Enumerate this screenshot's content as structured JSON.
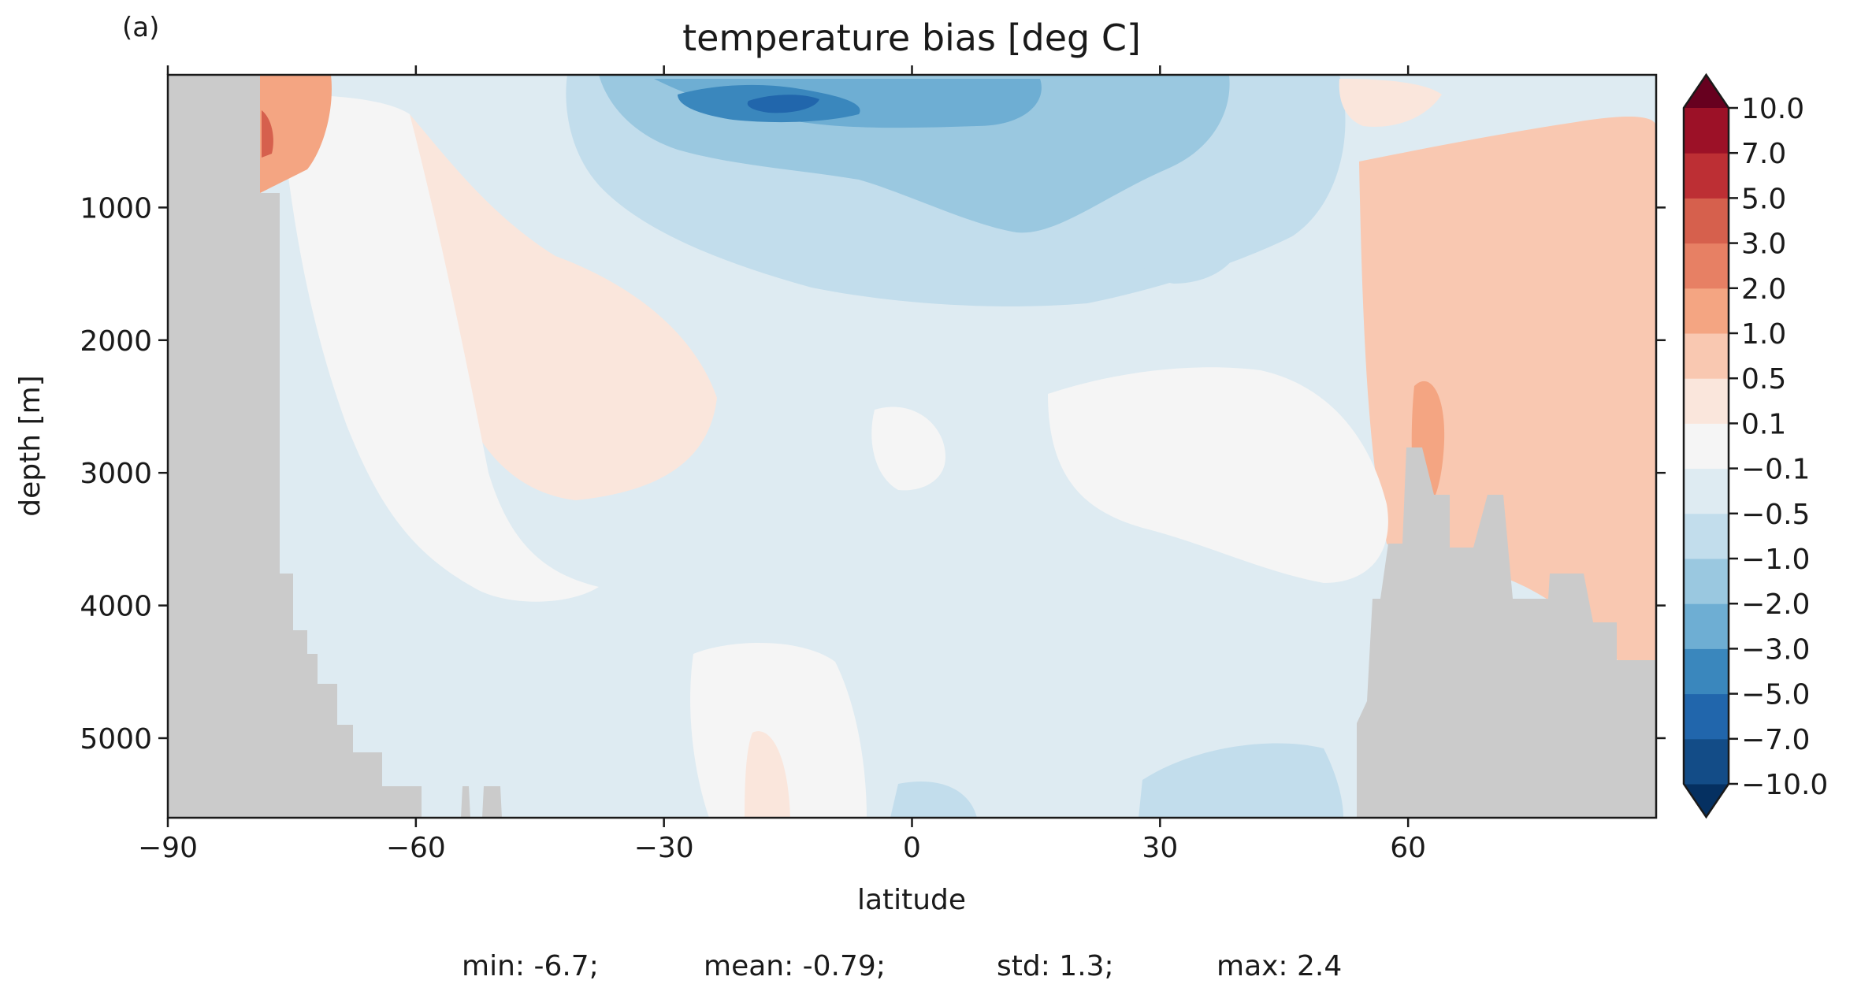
{
  "panel_label": "(a)",
  "chart_data": {
    "type": "heatmap",
    "title": "temperature bias [deg C]",
    "xlabel": "latitude",
    "ylabel": "depth [m]",
    "xlim": [
      -90,
      90
    ],
    "ylim": [
      5600,
      0
    ],
    "x_ticks": [
      -90,
      -60,
      -30,
      0,
      30,
      60
    ],
    "x_tick_labels": [
      "−90",
      "−60",
      "−30",
      "0",
      "30",
      "60"
    ],
    "y_ticks": [
      1000,
      2000,
      3000,
      4000,
      5000
    ],
    "y_tick_labels": [
      "1000",
      "2000",
      "3000",
      "4000",
      "5000"
    ],
    "colorbar": {
      "levels": [
        -10.0,
        -7.0,
        -5.0,
        -3.0,
        -2.0,
        -1.0,
        -0.5,
        -0.1,
        0.1,
        0.5,
        1.0,
        2.0,
        3.0,
        5.0,
        7.0,
        10.0
      ],
      "labels": [
        "−10.0",
        "−7.0",
        "−5.0",
        "−3.0",
        "−2.0",
        "−1.0",
        "−0.5",
        "−0.1",
        "0.1",
        "0.5",
        "1.0",
        "2.0",
        "3.0",
        "5.0",
        "7.0",
        "10.0"
      ],
      "colors": [
        "#053061",
        "#134c87",
        "#2166ac",
        "#3a87bd",
        "#6eaed3",
        "#9ac8e0",
        "#c2ddec",
        "#deebf2",
        "#f5f5f5",
        "#fae6dc",
        "#f9c8b1",
        "#f4a582",
        "#e78064",
        "#d6604d",
        "#bd2f34",
        "#9c1127",
        "#67001f"
      ],
      "extend": "both"
    },
    "land_color": "#cbcbcb",
    "stats": {
      "min": "min: -6.7;",
      "mean": "mean: -0.79;",
      "std": "std: 1.3;",
      "max": "max: 2.4"
    }
  }
}
